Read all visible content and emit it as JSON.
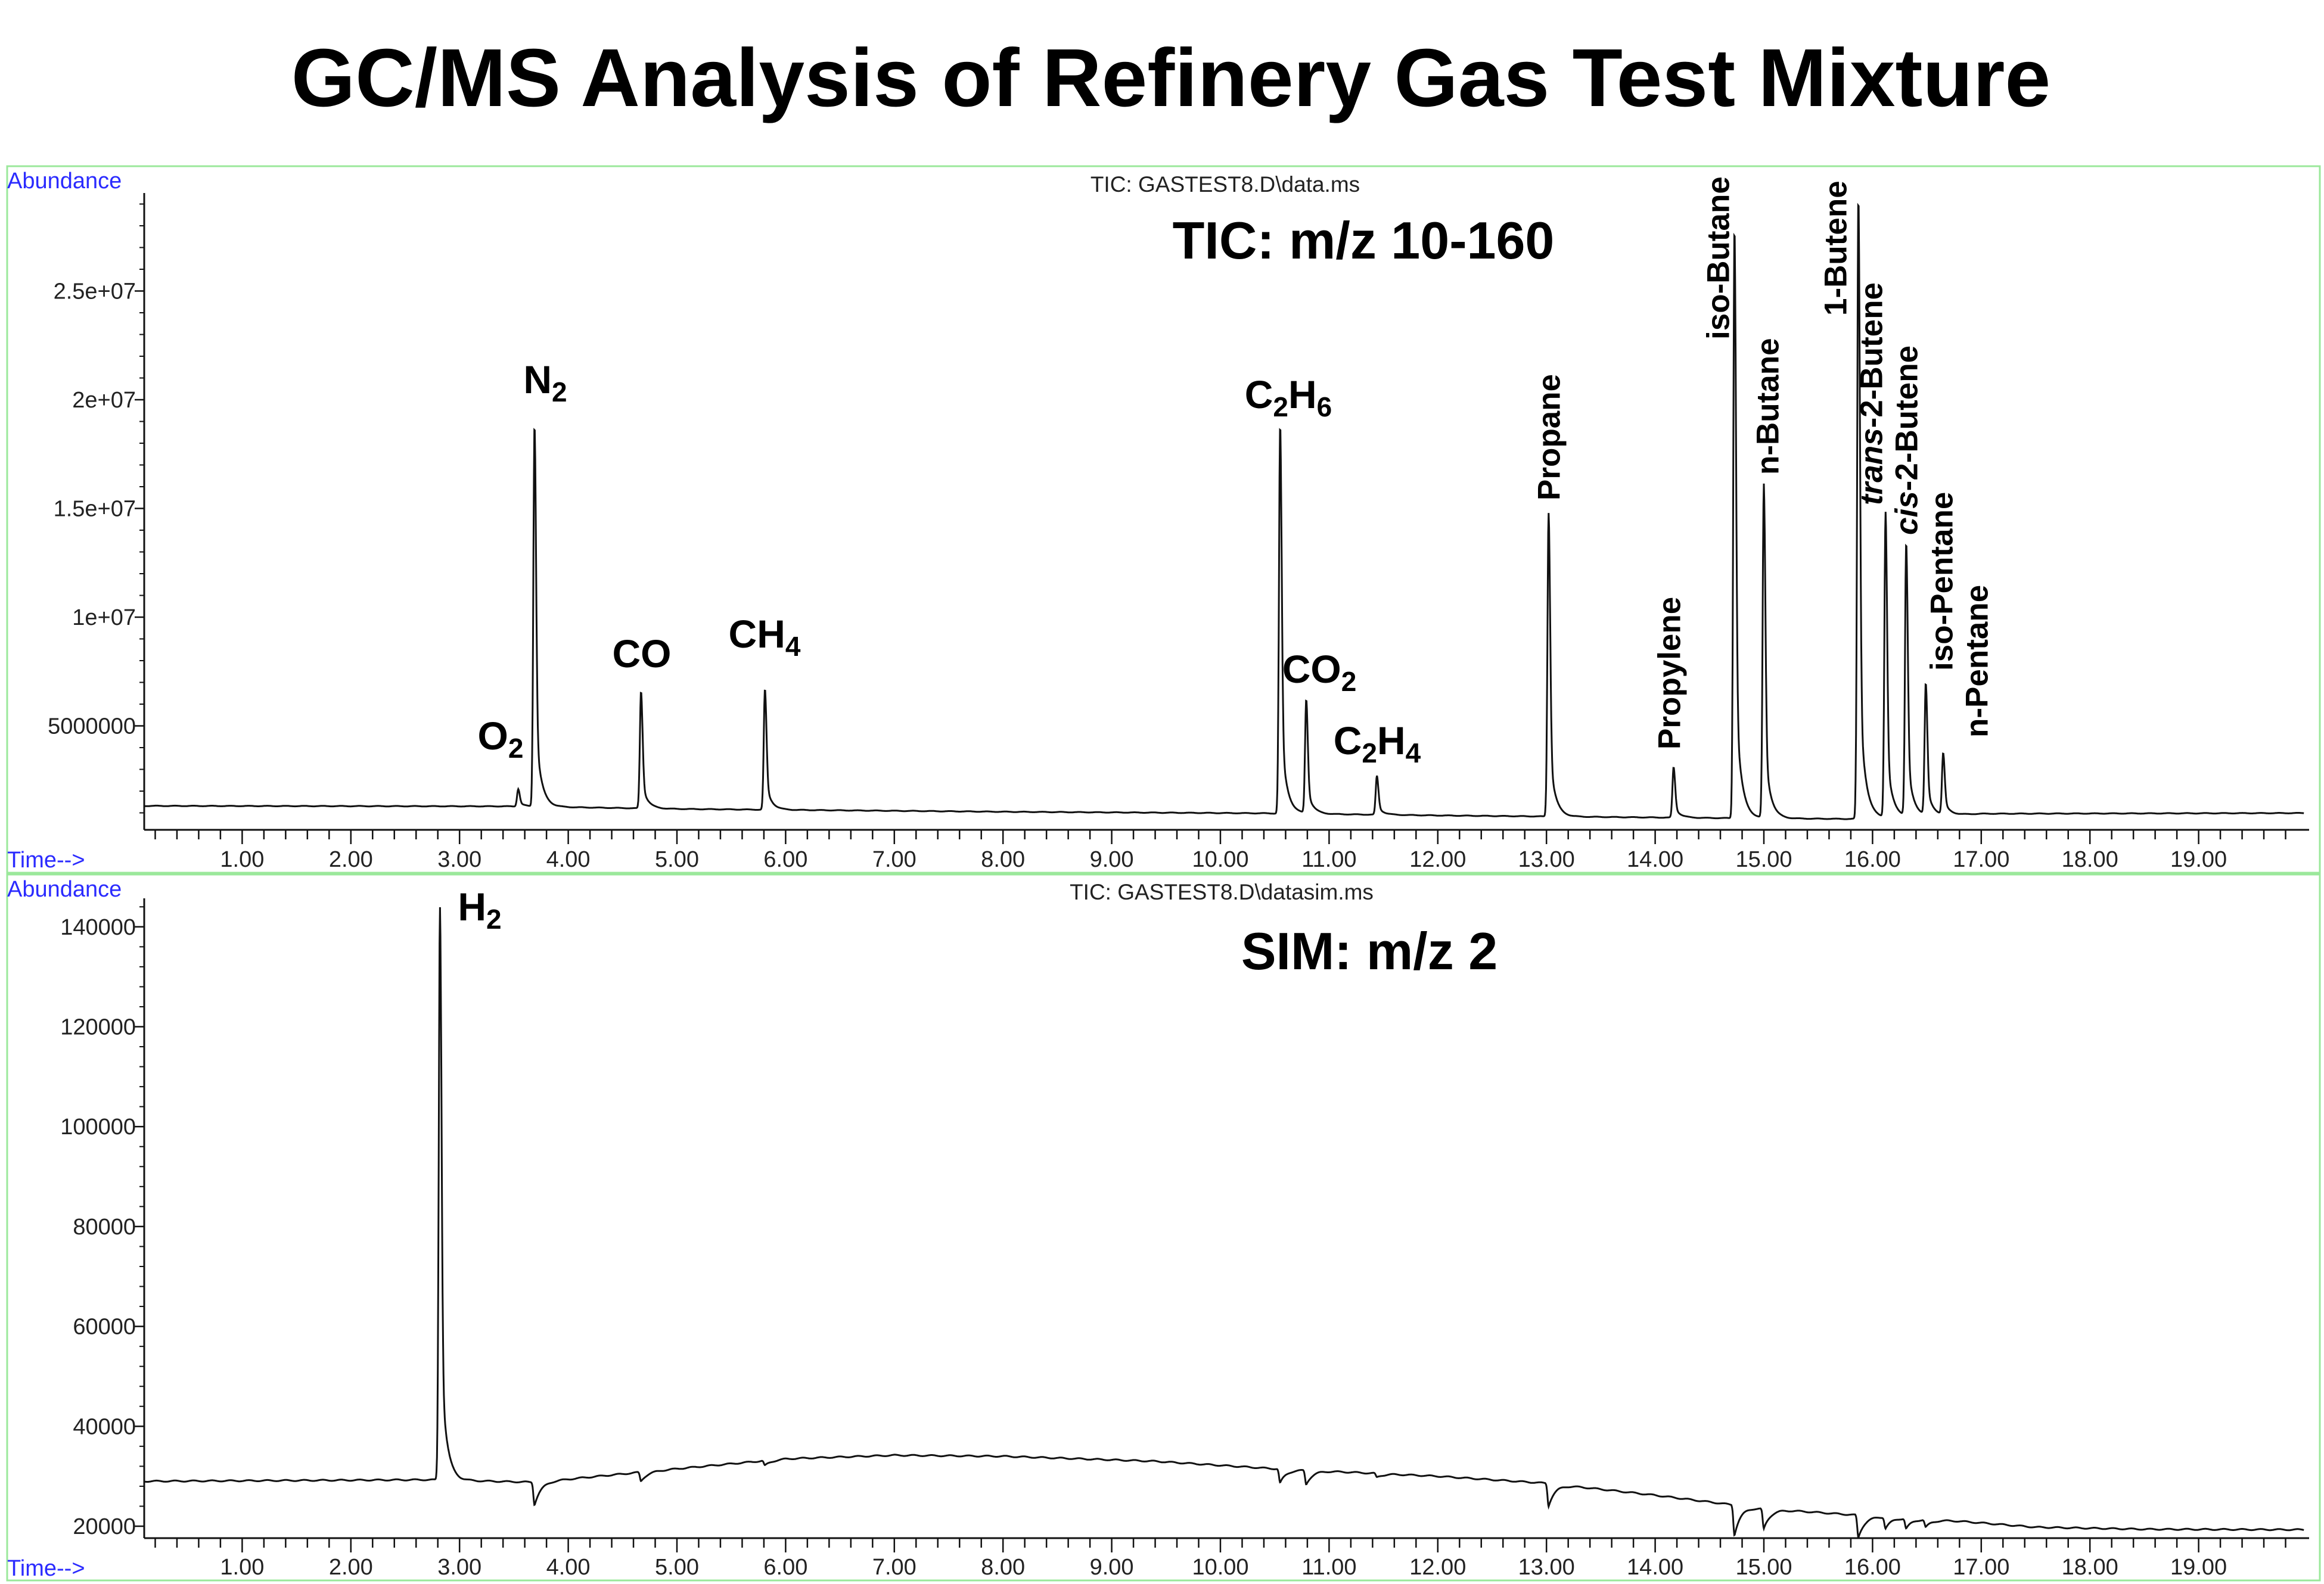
{
  "title": "GC/MS Analysis of Refinery Gas Test Mixture",
  "colors": {
    "frame": "#9be89b",
    "axis_label": "#2b2bff",
    "trace": "#111111"
  },
  "chart_data": [
    {
      "type": "line",
      "panel": "tic",
      "y_axis_label": "Abundance",
      "x_axis_label": "Time-->",
      "subtitle": "TIC: GASTEST8.D\\data.ms",
      "annotation": "TIC: m/z 10-160",
      "xlim": [
        0.1,
        20.0
      ],
      "ylim": [
        0,
        29500000
      ],
      "x_ticks": [
        "1.00",
        "2.00",
        "3.00",
        "4.00",
        "5.00",
        "6.00",
        "7.00",
        "8.00",
        "9.00",
        "10.00",
        "11.00",
        "12.00",
        "13.00",
        "14.00",
        "15.00",
        "16.00",
        "17.00",
        "18.00",
        "19.00"
      ],
      "y_ticks": [
        {
          "value": 5000000,
          "label": "5000000"
        },
        {
          "value": 10000000,
          "label": "1e+07"
        },
        {
          "value": 15000000,
          "label": "1.5e+07"
        },
        {
          "value": 20000000,
          "label": "2e+07"
        },
        {
          "value": 25000000,
          "label": "2.5e+07"
        }
      ],
      "baseline": [
        [
          0.1,
          1320000
        ],
        [
          3.5,
          1300000
        ],
        [
          5,
          1180000
        ],
        [
          8,
          1050000
        ],
        [
          10.4,
          980000
        ],
        [
          12,
          880000
        ],
        [
          14.6,
          760000
        ],
        [
          15.8,
          720000
        ],
        [
          17,
          960000
        ],
        [
          20,
          990000
        ]
      ],
      "peaks": [
        {
          "label": "O2",
          "formula": true,
          "time": 3.54,
          "abundance": 2100000
        },
        {
          "label": "N2",
          "formula": true,
          "time": 3.69,
          "abundance": 18900000
        },
        {
          "label": "CO",
          "formula": true,
          "time": 4.67,
          "abundance": 6600000
        },
        {
          "label": "CH4",
          "formula": true,
          "time": 5.81,
          "abundance": 6700000
        },
        {
          "label": "C2H6",
          "formula": true,
          "time": 10.55,
          "abundance": 18900000
        },
        {
          "label": "CO2",
          "formula": true,
          "time": 10.79,
          "abundance": 6200000
        },
        {
          "label": "C2H4",
          "formula": true,
          "time": 11.44,
          "abundance": 2700000
        },
        {
          "label": "Propane",
          "time": 13.02,
          "abundance": 14800000
        },
        {
          "label": "Propylene",
          "time": 14.17,
          "abundance": 3100000
        },
        {
          "label": "iso-Butane",
          "time": 14.73,
          "abundance": 28000000
        },
        {
          "label": "n-Butane",
          "time": 15.0,
          "abundance": 16100000
        },
        {
          "label": "1-Butene",
          "time": 15.87,
          "abundance": 29400000
        },
        {
          "label": "-2-Butene",
          "italic_prefix": "trans",
          "time": 16.12,
          "abundance": 14800000
        },
        {
          "label": "-2-Butene",
          "italic_prefix": "cis",
          "time": 16.31,
          "abundance": 13400000
        },
        {
          "label": "iso-Pentane",
          "time": 16.49,
          "abundance": 6900000
        },
        {
          "label": "n-Pentane",
          "time": 16.65,
          "abundance": 3700000
        }
      ]
    },
    {
      "type": "line",
      "panel": "sim",
      "y_axis_label": "Abundance",
      "x_axis_label": "Time-->",
      "subtitle": "TIC: GASTEST8.D\\datasim.ms",
      "annotation": "SIM: m/z 2",
      "xlim": [
        0.1,
        20.0
      ],
      "ylim": [
        17500,
        146000
      ],
      "x_ticks": [
        "1.00",
        "2.00",
        "3.00",
        "4.00",
        "5.00",
        "6.00",
        "7.00",
        "8.00",
        "9.00",
        "10.00",
        "11.00",
        "12.00",
        "13.00",
        "14.00",
        "15.00",
        "16.00",
        "17.00",
        "18.00",
        "19.00"
      ],
      "y_ticks": [
        {
          "value": 20000,
          "label": "20000"
        },
        {
          "value": 40000,
          "label": "40000"
        },
        {
          "value": 60000,
          "label": "60000"
        },
        {
          "value": 80000,
          "label": "80000"
        },
        {
          "value": 100000,
          "label": "100000"
        },
        {
          "value": 120000,
          "label": "120000"
        },
        {
          "value": 140000,
          "label": "140000"
        }
      ],
      "baseline": [
        [
          0.1,
          29000
        ],
        [
          2.7,
          29300
        ],
        [
          3.7,
          28800
        ],
        [
          5,
          31500
        ],
        [
          6,
          33500
        ],
        [
          7,
          34200
        ],
        [
          8,
          34000
        ],
        [
          9.4,
          33000
        ],
        [
          10.5,
          31500
        ],
        [
          12,
          30000
        ],
        [
          13,
          28600
        ],
        [
          14,
          26200
        ],
        [
          15,
          23500
        ],
        [
          16,
          22000
        ],
        [
          16.8,
          21000
        ],
        [
          17.5,
          19800
        ],
        [
          18.5,
          19400
        ],
        [
          20,
          19300
        ]
      ],
      "peaks": [
        {
          "label": "H2",
          "formula": true,
          "time": 2.82,
          "abundance": 144000
        }
      ],
      "dips": [
        {
          "time": 3.69,
          "depth": 4500
        },
        {
          "time": 4.67,
          "depth": 1800
        },
        {
          "time": 5.81,
          "depth": 1000
        },
        {
          "time": 10.55,
          "depth": 2800
        },
        {
          "time": 10.79,
          "depth": 2800
        },
        {
          "time": 11.44,
          "depth": 800
        },
        {
          "time": 13.02,
          "depth": 4500
        },
        {
          "time": 14.73,
          "depth": 6000
        },
        {
          "time": 15.0,
          "depth": 4000
        },
        {
          "time": 15.87,
          "depth": 4500
        },
        {
          "time": 16.12,
          "depth": 2200
        },
        {
          "time": 16.31,
          "depth": 2000
        },
        {
          "time": 16.49,
          "depth": 1500
        }
      ]
    }
  ]
}
